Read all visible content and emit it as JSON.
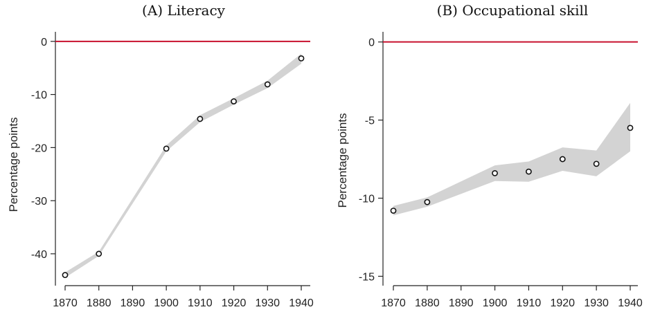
{
  "chart_data": [
    {
      "type": "scatter",
      "title": "(A) Literacy",
      "xlabel": "",
      "ylabel": "Percentage points",
      "x": [
        1870,
        1880,
        1900,
        1910,
        1920,
        1930,
        1940
      ],
      "x_ticks": [
        1870,
        1880,
        1890,
        1900,
        1910,
        1920,
        1930,
        1940
      ],
      "x_tick_labels": [
        "1870",
        "1880",
        "1890",
        "1900",
        "1910",
        "1920",
        "1930",
        "1940"
      ],
      "xlim": [
        1870,
        1940
      ],
      "y_ticks": [
        0,
        -10,
        -20,
        -30,
        -40
      ],
      "y_tick_labels": [
        "0",
        "-10",
        "-20",
        "-30",
        "-40"
      ],
      "ylim": [
        -46,
        1.8
      ],
      "reference_line": {
        "y": 0,
        "color": "#c8102e"
      },
      "series": [
        {
          "values": [
            -44,
            -40,
            -20.2,
            -14.6,
            -11.3,
            -8.1,
            -3.2
          ],
          "ci_lower": [
            -44.5,
            -40.4,
            -20.7,
            -15.2,
            -11.9,
            -8.8,
            -4.2
          ],
          "ci_upper": [
            -43.5,
            -39.6,
            -19.6,
            -13.9,
            -10.7,
            -7.4,
            -2.3
          ]
        }
      ],
      "band_color": "#d3d3d3",
      "grid": false
    },
    {
      "type": "scatter",
      "title": "(B) Occupational skill",
      "xlabel": "",
      "ylabel": "Percentage points",
      "x": [
        1870,
        1880,
        1900,
        1910,
        1920,
        1930,
        1940
      ],
      "x_ticks": [
        1870,
        1880,
        1890,
        1900,
        1910,
        1920,
        1930,
        1940
      ],
      "x_tick_labels": [
        "1870",
        "1880",
        "1890",
        "1900",
        "1910",
        "1920",
        "1930",
        "1940"
      ],
      "xlim": [
        1870,
        1940
      ],
      "y_ticks": [
        0,
        -5,
        -10,
        -15
      ],
      "y_tick_labels": [
        "0",
        "-5",
        "-10",
        "-15"
      ],
      "ylim": [
        -15.6,
        0.65
      ],
      "reference_line": {
        "y": 0,
        "color": "#c8102e"
      },
      "series": [
        {
          "values": [
            -10.8,
            -10.25,
            -8.4,
            -8.3,
            -7.5,
            -7.8,
            -5.5
          ],
          "ci_lower": [
            -11.1,
            -10.55,
            -8.9,
            -8.95,
            -8.25,
            -8.6,
            -7.0
          ],
          "ci_upper": [
            -10.5,
            -9.95,
            -7.9,
            -7.65,
            -6.75,
            -6.95,
            -3.9
          ]
        }
      ],
      "band_color": "#d3d3d3",
      "grid": false
    }
  ]
}
